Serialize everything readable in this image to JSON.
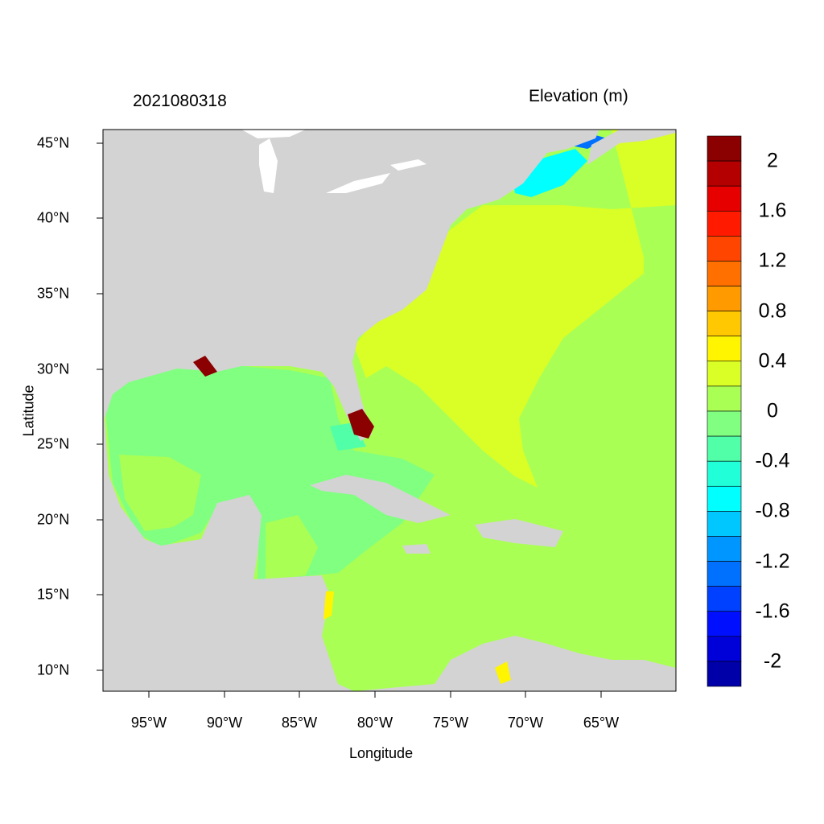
{
  "title_left": "2021080318",
  "title_right": "Elevation (m)",
  "xlabel": "Longitude",
  "ylabel": "Latitude",
  "x_ticks": [
    "95°W",
    "90°W",
    "85°W",
    "80°W",
    "75°W",
    "70°W",
    "65°W"
  ],
  "y_ticks": [
    "45°N",
    "40°N",
    "35°N",
    "30°N",
    "25°N",
    "20°N",
    "15°N",
    "10°N"
  ],
  "extent": {
    "lon": [
      -98,
      -60
    ],
    "lat": [
      8.6,
      45.8
    ]
  },
  "land_color": "#D3D3D3",
  "colorbar": {
    "labels": [
      "2",
      "1.6",
      "1.2",
      "0.8",
      "0.4",
      "0",
      "-0.4",
      "-0.8",
      "-1.2",
      "-1.6",
      "-2"
    ],
    "colors": [
      "#8B0000",
      "#B40000",
      "#E60000",
      "#FF1A00",
      "#FF4500",
      "#FF7000",
      "#FF9A00",
      "#FFC800",
      "#FFF500",
      "#D9FF26",
      "#AAFF55",
      "#80FF80",
      "#50FFA8",
      "#20FFD8",
      "#00FFFF",
      "#00C8FF",
      "#0096FF",
      "#0070FF",
      "#0040FF",
      "#0010FF",
      "#0000D8",
      "#0000A8"
    ]
  }
}
